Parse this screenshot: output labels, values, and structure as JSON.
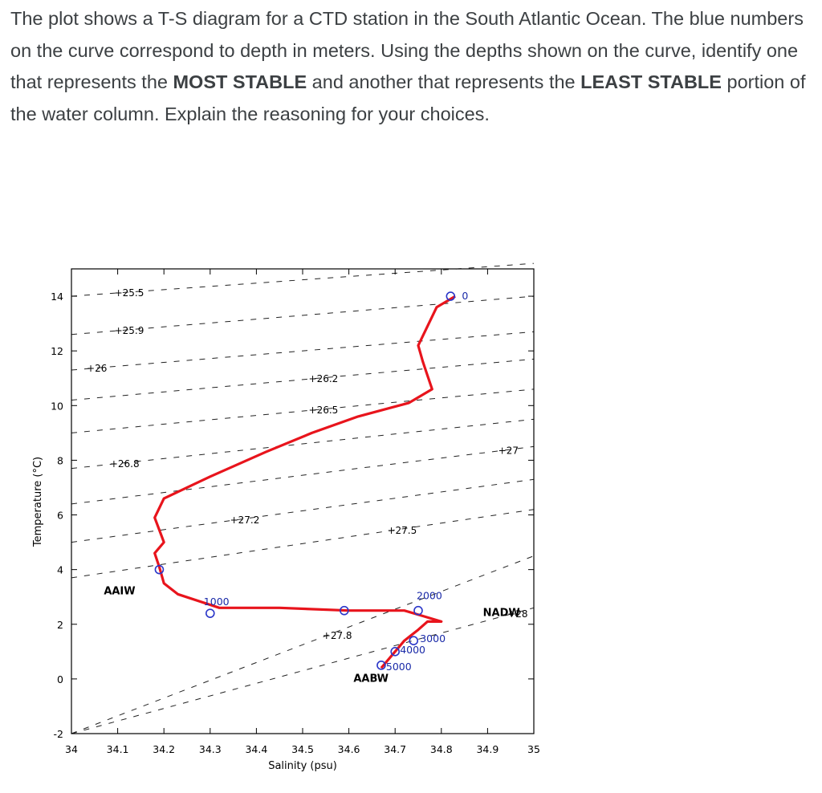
{
  "question": {
    "p1": "The plot shows a T-S diagram for a CTD station in the South Atlantic Ocean. The blue numbers on the curve correspond to depth in meters. Using the depths shown on the curve, identify one that represents the ",
    "b1": "MOST STABLE",
    "p2": " and another that represents the ",
    "b2": "LEAST STABLE",
    "p3": " portion of the water column. Explain the reasoning for your choices."
  },
  "chart_data": {
    "type": "line",
    "xlabel": "Salinity (psu)",
    "ylabel": "Temperature (°C)",
    "xlim": [
      34,
      35
    ],
    "ylim": [
      -2,
      15
    ],
    "x_ticks": [
      "34",
      "34.1",
      "34.2",
      "34.3",
      "34.4",
      "34.5",
      "34.6",
      "34.7",
      "34.8",
      "34.9",
      "35"
    ],
    "y_ticks": [
      "-2",
      "0",
      "2",
      "4",
      "6",
      "8",
      "10",
      "12",
      "14"
    ],
    "profile": {
      "color": "#e8141c",
      "points": [
        [
          34.83,
          14.0
        ],
        [
          34.79,
          13.6
        ],
        [
          34.75,
          12.2
        ],
        [
          34.76,
          11.6
        ],
        [
          34.77,
          11.1
        ],
        [
          34.78,
          10.6
        ],
        [
          34.73,
          10.1
        ],
        [
          34.62,
          9.6
        ],
        [
          34.52,
          9.0
        ],
        [
          34.42,
          8.3
        ],
        [
          34.3,
          7.4
        ],
        [
          34.2,
          6.6
        ],
        [
          34.18,
          5.9
        ],
        [
          34.2,
          5.0
        ],
        [
          34.18,
          4.6
        ],
        [
          34.19,
          4.1
        ],
        [
          34.2,
          3.5
        ],
        [
          34.23,
          3.1
        ],
        [
          34.32,
          2.6
        ],
        [
          34.45,
          2.6
        ],
        [
          34.6,
          2.5
        ],
        [
          34.72,
          2.5
        ],
        [
          34.76,
          2.3
        ],
        [
          34.8,
          2.1
        ],
        [
          34.77,
          2.1
        ],
        [
          34.75,
          1.8
        ],
        [
          34.72,
          1.4
        ],
        [
          34.7,
          1.0
        ],
        [
          34.68,
          0.6
        ],
        [
          34.67,
          0.4
        ]
      ]
    },
    "depth_markers": [
      {
        "s": 34.82,
        "t": 14.0,
        "label": "0",
        "show": true
      },
      {
        "s": 34.19,
        "t": 4.0,
        "label": "",
        "show": false
      },
      {
        "s": 34.3,
        "t": 2.4,
        "label": "1000",
        "show": true
      },
      {
        "s": 34.59,
        "t": 2.5,
        "label": "",
        "show": false
      },
      {
        "s": 34.75,
        "t": 2.5,
        "label": "2000",
        "show": true
      },
      {
        "s": 34.74,
        "t": 1.4,
        "label": "3000",
        "show": true
      },
      {
        "s": 34.7,
        "t": 1.0,
        "label": "4000",
        "show": true
      },
      {
        "s": 34.67,
        "t": 0.5,
        "label": "5000",
        "show": true
      }
    ],
    "isopycnals": [
      {
        "label": "25.5",
        "y0": 14.0,
        "y1": 15.2
      },
      {
        "label": "25.9",
        "y0": 12.6,
        "y1": 14.0
      },
      {
        "label": "26",
        "y0": 11.3,
        "y1": 12.7
      },
      {
        "label": "26.2",
        "y0": 10.2,
        "y1": 11.7
      },
      {
        "label": "26.5",
        "y0": 9.0,
        "y1": 10.6
      },
      {
        "label": "26.8",
        "y0": 7.7,
        "y1": 9.5
      },
      {
        "label": "27",
        "y0": 6.4,
        "y1": 8.5
      },
      {
        "label": "27.2",
        "y0": 5.0,
        "y1": 7.3
      },
      {
        "label": "27.5",
        "y0": 3.7,
        "y1": 6.2
      },
      {
        "label": "27.8",
        "y0": -2.0,
        "y1": 4.5
      },
      {
        "label": "28",
        "y0": -2.0,
        "y1": 2.6
      }
    ],
    "annotations": [
      {
        "text": "AAIW",
        "s": 34.07,
        "t": 3.1
      },
      {
        "text": "NADW",
        "s": 34.89,
        "t": 2.3
      },
      {
        "text": "AABW",
        "s": 34.61,
        "t": -0.1
      }
    ]
  }
}
